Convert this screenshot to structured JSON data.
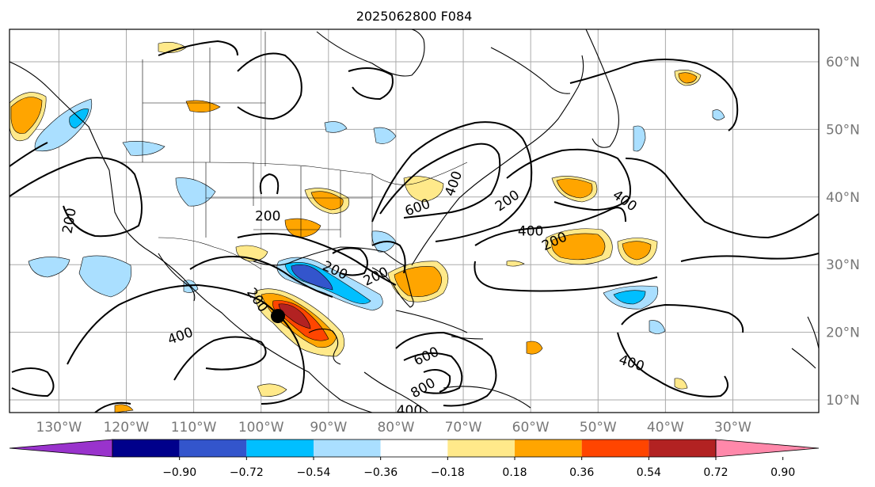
{
  "title": "2025062800 F084",
  "map": {
    "lon_ticks": [
      {
        "lon": -130,
        "label": "130°W"
      },
      {
        "lon": -120,
        "label": "120°W"
      },
      {
        "lon": -110,
        "label": "110°W"
      },
      {
        "lon": -100,
        "label": "100°W"
      },
      {
        "lon": -90,
        "label": "90°W"
      },
      {
        "lon": -80,
        "label": "80°W"
      },
      {
        "lon": -70,
        "label": "70°W"
      },
      {
        "lon": -60,
        "label": "60°W"
      },
      {
        "lon": -50,
        "label": "50°W"
      },
      {
        "lon": -40,
        "label": "40°W"
      },
      {
        "lon": -30,
        "label": "30°W"
      }
    ],
    "lat_ticks": [
      {
        "lat": 60,
        "label": "60°N"
      },
      {
        "lat": 50,
        "label": "50°N"
      },
      {
        "lat": 40,
        "label": "40°N"
      },
      {
        "lat": 30,
        "label": "30°N"
      },
      {
        "lat": 20,
        "label": "20°N"
      },
      {
        "lat": 10,
        "label": "10°N"
      }
    ],
    "contour_labels": [
      {
        "text": "200",
        "lon": -99,
        "lat": 37.2,
        "rot": 0
      },
      {
        "text": "200",
        "lon": -128.5,
        "lat": 36.5,
        "rot": -80
      },
      {
        "text": "200",
        "lon": -89,
        "lat": 29.2,
        "rot": 25
      },
      {
        "text": "200",
        "lon": -83,
        "lat": 28.3,
        "rot": -25
      },
      {
        "text": "200",
        "lon": -100.5,
        "lat": 24.8,
        "rot": 55
      },
      {
        "text": "600",
        "lon": -76.8,
        "lat": 38.5,
        "rot": -20
      },
      {
        "text": "400",
        "lon": -71.5,
        "lat": 42,
        "rot": -70
      },
      {
        "text": "200",
        "lon": -63.5,
        "lat": 39.5,
        "rot": -35
      },
      {
        "text": "400",
        "lon": -46,
        "lat": 39.5,
        "rot": 35
      },
      {
        "text": "400",
        "lon": -60,
        "lat": 35,
        "rot": 0
      },
      {
        "text": "200",
        "lon": -56.5,
        "lat": 33.5,
        "rot": -25
      },
      {
        "text": "400",
        "lon": -112,
        "lat": 19.5,
        "rot": -20
      },
      {
        "text": "600",
        "lon": -75.5,
        "lat": 16.5,
        "rot": -25
      },
      {
        "text": "800",
        "lon": -76,
        "lat": 11.8,
        "rot": -30
      },
      {
        "text": "400",
        "lon": -78,
        "lat": 8.5,
        "rot": 0
      },
      {
        "text": "400",
        "lon": -45,
        "lat": 15.5,
        "rot": 18
      }
    ],
    "storm_center": {
      "lon": -97.5,
      "lat": 22.4
    }
  },
  "colorbar": {
    "colors": [
      "#9933cc",
      "#00008b",
      "#3355cc",
      "#00bfff",
      "#aadfff",
      "#ffffff",
      "#ffe98a",
      "#ffa500",
      "#ff4500",
      "#b22222",
      "#ff88aa"
    ],
    "labels": [
      "−0.90",
      "−0.72",
      "−0.54",
      "−0.36",
      "−0.18",
      "0.18",
      "0.36",
      "0.54",
      "0.72",
      "0.90"
    ]
  }
}
